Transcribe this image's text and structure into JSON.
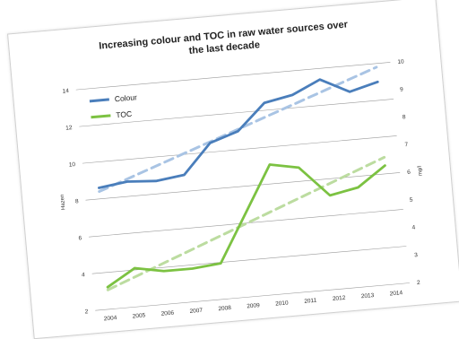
{
  "chart_data": {
    "type": "line",
    "title_lines": [
      "Increasing colour and TOC in raw water sources over",
      "the last decade"
    ],
    "x": [
      "2004",
      "2005",
      "2006",
      "2007",
      "2008",
      "2009",
      "2010",
      "2011",
      "2012",
      "2013",
      "2014"
    ],
    "series": [
      {
        "name": "Colour",
        "axis": "left",
        "color": "#4a7ebb",
        "values": [
          8.6,
          8.8,
          8.7,
          8.9,
          10.5,
          11.0,
          12.4,
          12.7,
          13.4,
          12.6,
          13.0
        ],
        "trend_start": 8.4,
        "trend_end": 13.8
      },
      {
        "name": "TOC",
        "axis": "right",
        "color": "#7cc242",
        "values": [
          2.8,
          3.4,
          3.2,
          3.2,
          3.3,
          5.0,
          6.7,
          6.5,
          5.4,
          5.6,
          6.3
        ],
        "trend_start": 2.7,
        "trend_end": 6.6
      }
    ],
    "y_left": {
      "label": "Hazen",
      "range": [
        2,
        14
      ],
      "ticks": [
        "2",
        "4",
        "6",
        "8",
        "10",
        "12",
        "14"
      ]
    },
    "y_right": {
      "label": "mg/l",
      "range": [
        2,
        10
      ],
      "ticks": [
        "2",
        "3",
        "4",
        "5",
        "6",
        "7",
        "8",
        "9",
        "10"
      ]
    },
    "grid": true,
    "legend_position": "top-left"
  }
}
